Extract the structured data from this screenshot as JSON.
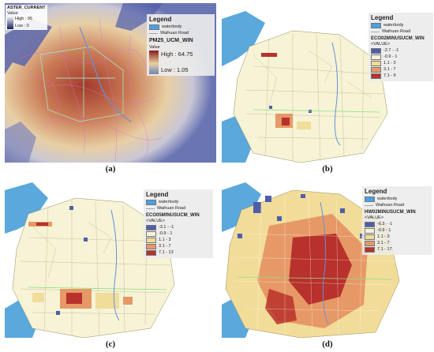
{
  "panels": [
    {
      "id": "a",
      "caption": "(a)",
      "inset_legend": {
        "title": "ASTER_CURRENT",
        "value_label": "Value",
        "high": "High : 95",
        "low": "Low : 0"
      },
      "legend": {
        "title": "Legend",
        "waterbody": "waterbody",
        "road": "Waihuan Road",
        "layer": "PM25_UCM_WIN",
        "value_label": "Value",
        "high": "High : 64.75",
        "low": "Low : 1.05"
      }
    },
    {
      "id": "b",
      "caption": "(b)",
      "legend": {
        "title": "Legend",
        "waterbody": "waterbody",
        "road": "Waihuan Road",
        "layer": "ECO02MINUSUCM_WIN",
        "value_label": "<VALUE>",
        "classes": [
          "-2.7 - -1",
          "-0.9 - 1",
          "1.1 - 3",
          "3.1 - 7",
          "7.1 - 9"
        ]
      }
    },
    {
      "id": "c",
      "caption": "(c)",
      "legend": {
        "title": "Legend",
        "waterbody": "waterbody",
        "road": "Waihuan Road",
        "layer": "ECO05MINUSUCM_WIN",
        "value_label": "<VALUE>",
        "classes": [
          "-3.1 - -1",
          "-0.9 - 1",
          "1.1 - 3",
          "3.1 - 7",
          "7.1 - 13"
        ]
      }
    },
    {
      "id": "d",
      "caption": "(d)",
      "legend": {
        "title": "Legend",
        "waterbody": "waterbody",
        "road": "Waihuan Road",
        "layer": "HW02MINUSUCM_WIN",
        "value_label": "<VALUE>",
        "classes": [
          "-6.3 - -1",
          "-0.9 - 1",
          "1.1 - 3",
          "3.1 - 7",
          "7.1 - 17"
        ]
      }
    }
  ],
  "colors": {
    "water": "#5aa8dc",
    "waterbody_swatch": "#4aa0e6",
    "class_colors": [
      "#4e5fa8",
      "#f6f3d6",
      "#f1dc9a",
      "#e69966",
      "#b8312c"
    ]
  }
}
